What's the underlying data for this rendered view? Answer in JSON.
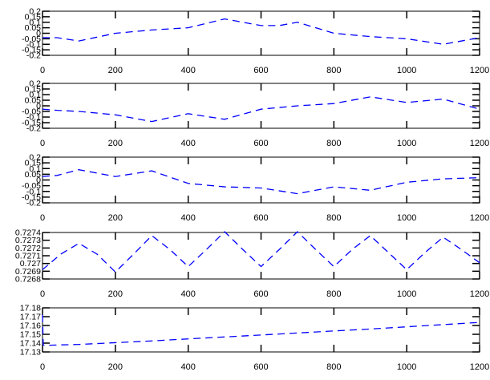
{
  "chart_data": [
    {
      "type": "line",
      "xlim": [
        0,
        1200
      ],
      "ylim": [
        -0.2,
        0.2
      ],
      "x_ticks": [
        "0",
        "200",
        "400",
        "600",
        "800",
        "1000",
        "1200"
      ],
      "y_ticks": [
        "0.2",
        "0.15",
        "0.1",
        "0.05",
        "0",
        "-0.05",
        "-0.1",
        "-0.15",
        "-0.2"
      ],
      "series": [
        {
          "x": [
            0,
            40,
            100,
            200,
            300,
            400,
            500,
            600,
            650,
            700,
            800,
            900,
            1000,
            1100,
            1200
          ],
          "y": [
            -0.04,
            -0.04,
            -0.07,
            0.0,
            0.03,
            0.05,
            0.13,
            0.07,
            0.07,
            0.1,
            0.0,
            -0.03,
            -0.05,
            -0.1,
            -0.04
          ],
          "line_style": "dashed"
        }
      ],
      "grid": false
    },
    {
      "type": "line",
      "xlim": [
        0,
        1200
      ],
      "ylim": [
        -0.2,
        0.2
      ],
      "x_ticks": [
        "0",
        "200",
        "400",
        "600",
        "800",
        "1000",
        "1200"
      ],
      "y_ticks": [
        "0.2",
        "0.15",
        "0.1",
        "0.05",
        "0",
        "-0.05",
        "-0.1",
        "-0.15",
        "-0.2"
      ],
      "series": [
        {
          "x": [
            0,
            40,
            100,
            200,
            300,
            400,
            500,
            600,
            700,
            800,
            900,
            1000,
            1100,
            1200
          ],
          "y": [
            -0.03,
            -0.04,
            -0.05,
            -0.08,
            -0.14,
            -0.07,
            -0.12,
            -0.03,
            0.0,
            0.02,
            0.08,
            0.03,
            0.06,
            -0.03
          ],
          "line_style": "dashed"
        }
      ],
      "grid": false
    },
    {
      "type": "line",
      "xlim": [
        0,
        1200
      ],
      "ylim": [
        -0.2,
        0.2
      ],
      "x_ticks": [
        "0",
        "200",
        "400",
        "600",
        "800",
        "1000",
        "1200"
      ],
      "y_ticks": [
        "0.2",
        "0.15",
        "0.1",
        "0.05",
        "0",
        "-0.05",
        "-0.1",
        "-0.15",
        "-0.2"
      ],
      "series": [
        {
          "x": [
            0,
            40,
            100,
            200,
            300,
            400,
            500,
            600,
            700,
            800,
            900,
            1000,
            1100,
            1200
          ],
          "y": [
            0.03,
            0.04,
            0.09,
            0.03,
            0.08,
            -0.03,
            -0.06,
            -0.07,
            -0.12,
            -0.06,
            -0.09,
            -0.02,
            0.01,
            0.02
          ],
          "line_style": "dashed"
        }
      ],
      "grid": false
    },
    {
      "type": "line",
      "xlim": [
        0,
        1200
      ],
      "ylim": [
        0.7268,
        0.7274
      ],
      "x_ticks": [
        "0",
        "200",
        "400",
        "600",
        "800",
        "1000",
        "1200"
      ],
      "y_ticks": [
        "0.7274",
        "0.7273",
        "0.7272",
        "0.7271",
        "0.727",
        "0.7269",
        "0.7268"
      ],
      "series": [
        {
          "x": [
            0,
            50,
            100,
            150,
            200,
            250,
            300,
            350,
            400,
            450,
            500,
            550,
            600,
            650,
            700,
            750,
            800,
            850,
            900,
            950,
            1000,
            1050,
            1100,
            1150,
            1200
          ],
          "y": [
            0.72692,
            0.72712,
            0.72726,
            0.72712,
            0.72689,
            0.72712,
            0.72736,
            0.72718,
            0.72696,
            0.72718,
            0.72741,
            0.72718,
            0.72696,
            0.72718,
            0.72741,
            0.72718,
            0.72696,
            0.72718,
            0.72736,
            0.72714,
            0.72692,
            0.72714,
            0.72734,
            0.72718,
            0.72701
          ],
          "line_style": "dashed"
        }
      ],
      "grid": false
    },
    {
      "type": "line",
      "xlim": [
        0,
        1200
      ],
      "ylim": [
        17.13,
        17.18
      ],
      "x_ticks": [
        "0",
        "200",
        "400",
        "600",
        "800",
        "1000",
        "1200"
      ],
      "y_ticks": [
        "17.18",
        "17.17",
        "17.16",
        "17.15",
        "17.14",
        "17.13"
      ],
      "series": [
        {
          "x": [
            0,
            2,
            5,
            100,
            200,
            300,
            400,
            500,
            600,
            700,
            800,
            900,
            1000,
            1100,
            1200
          ],
          "y": [
            17.172,
            17.138,
            17.1375,
            17.1385,
            17.1405,
            17.1425,
            17.1448,
            17.147,
            17.1492,
            17.1515,
            17.1538,
            17.156,
            17.1585,
            17.161,
            17.1635
          ],
          "line_style": "dashed"
        }
      ],
      "grid": false
    }
  ],
  "colors": {
    "line": "#0000ff",
    "axis": "#000000",
    "background": "#ffffff"
  }
}
